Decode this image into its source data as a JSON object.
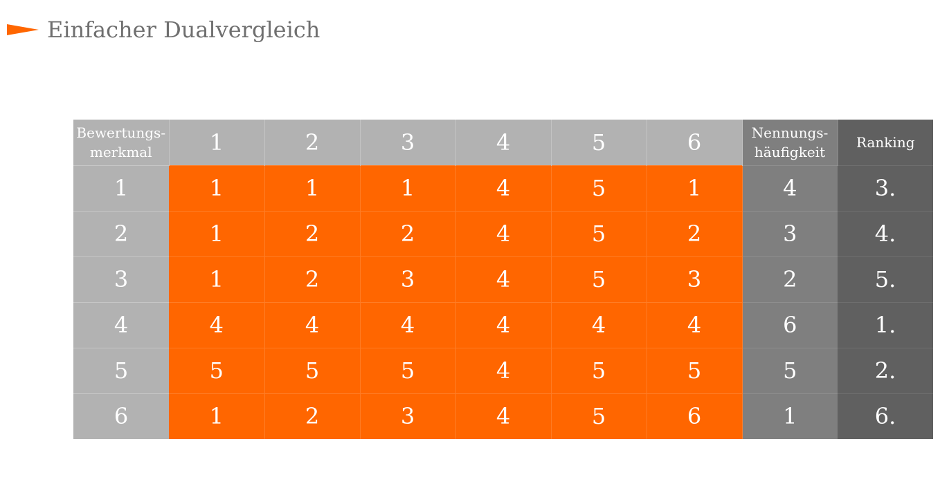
{
  "title": "Einfacher Dualvergleich",
  "colors": {
    "accent": "#ff6600",
    "header_light": "#b2b2b2",
    "header_dark": "#7f7f7f",
    "header_darker": "#606060",
    "title_text": "#6f6f6f"
  },
  "icons": {
    "title_marker": "arrow-right-icon"
  },
  "table": {
    "header": {
      "criterion_label": "Bewertungs-\nmerkmal",
      "columns": [
        "1",
        "2",
        "3",
        "4",
        "5",
        "6"
      ],
      "frequency_label": "Nennungs-\nhäufigkeit",
      "ranking_label": "Ranking"
    },
    "rows": [
      {
        "criterion": "1",
        "cells": [
          "1",
          "1",
          "1",
          "4",
          "5",
          "1"
        ],
        "frequency": "4",
        "ranking": "3."
      },
      {
        "criterion": "2",
        "cells": [
          "1",
          "2",
          "2",
          "4",
          "5",
          "2"
        ],
        "frequency": "3",
        "ranking": "4."
      },
      {
        "criterion": "3",
        "cells": [
          "1",
          "2",
          "3",
          "4",
          "5",
          "3"
        ],
        "frequency": "2",
        "ranking": "5."
      },
      {
        "criterion": "4",
        "cells": [
          "4",
          "4",
          "4",
          "4",
          "4",
          "4"
        ],
        "frequency": "6",
        "ranking": "1."
      },
      {
        "criterion": "5",
        "cells": [
          "5",
          "5",
          "5",
          "4",
          "5",
          "5"
        ],
        "frequency": "5",
        "ranking": "2."
      },
      {
        "criterion": "6",
        "cells": [
          "1",
          "2",
          "3",
          "4",
          "5",
          "6"
        ],
        "frequency": "1",
        "ranking": "6."
      }
    ]
  }
}
